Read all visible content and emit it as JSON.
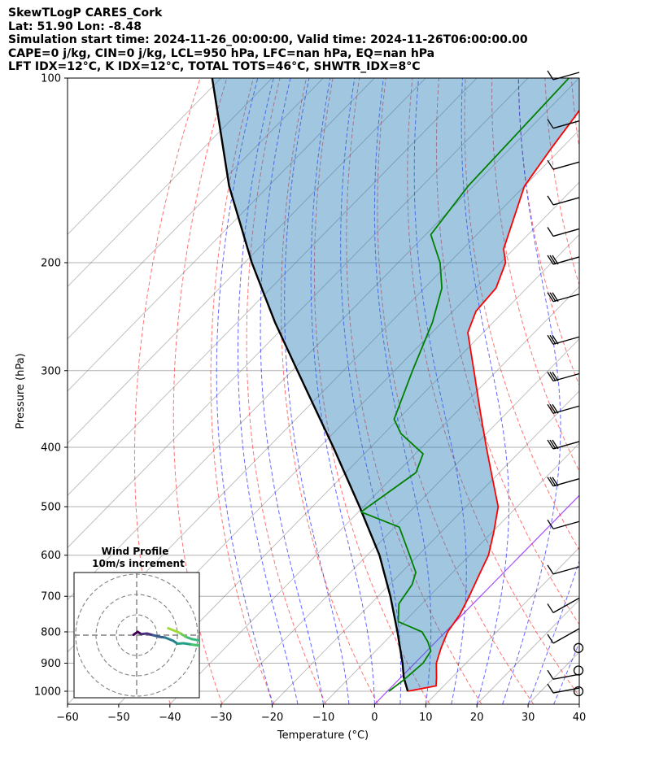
{
  "header": {
    "line1": "SkewTLogP CARES_Cork",
    "line2": "Lat: 51.90   Lon: -8.48",
    "line3": "Simulation start time: 2024-11-26_00:00:00, Valid time: 2024-11-26T06:00:00.00",
    "line4": "CAPE=0 j/kg, CIN=0 j/kg, LCL=950 hPa, LFC=nan hPa, EQ=nan hPa",
    "line5": "LFT IDX=12°C, K IDX=12°C, TOTAL TOTS=46°C, SHWTR_IDX=8°C"
  },
  "chart_data": {
    "type": "skewt-logp",
    "xlabel": "Temperature (°C)",
    "ylabel": "Pressure (hPa)",
    "xlim": [
      -60,
      40
    ],
    "ylim": [
      1050,
      100
    ],
    "x_ticks": [
      "−60",
      "−50",
      "−40",
      "−30",
      "−20",
      "−10",
      "0",
      "10",
      "20",
      "30",
      "40"
    ],
    "x_tick_values": [
      -60,
      -50,
      -40,
      -30,
      -20,
      -10,
      0,
      10,
      20,
      30,
      40
    ],
    "p_ticks": [
      "100",
      "200",
      "300",
      "400",
      "500",
      "600",
      "700",
      "800",
      "900",
      "1000"
    ],
    "p_tick_values": [
      100,
      200,
      300,
      400,
      500,
      600,
      700,
      800,
      900,
      1000
    ],
    "temperature": [
      {
        "p": 1000,
        "t": 4
      },
      {
        "p": 980,
        "t": 8.5
      },
      {
        "p": 950,
        "t": 7
      },
      {
        "p": 900,
        "t": 4.2
      },
      {
        "p": 850,
        "t": 2.2
      },
      {
        "p": 800,
        "t": 0.4
      },
      {
        "p": 750,
        "t": -0.5
      },
      {
        "p": 700,
        "t": -2.2
      },
      {
        "p": 650,
        "t": -4.2
      },
      {
        "p": 600,
        "t": -6.3
      },
      {
        "p": 550,
        "t": -9.7
      },
      {
        "p": 500,
        "t": -13.7
      },
      {
        "p": 450,
        "t": -20.2
      },
      {
        "p": 400,
        "t": -27.4
      },
      {
        "p": 350,
        "t": -35.4
      },
      {
        "p": 300,
        "t": -44.5
      },
      {
        "p": 260,
        "t": -53
      },
      {
        "p": 240,
        "t": -55.5
      },
      {
        "p": 220,
        "t": -56
      },
      {
        "p": 200,
        "t": -59
      },
      {
        "p": 190,
        "t": -62
      },
      {
        "p": 150,
        "t": -70
      },
      {
        "p": 130,
        "t": -72
      },
      {
        "p": 115,
        "t": -73.5
      },
      {
        "p": 100,
        "t": -75.5
      }
    ],
    "dewpoint": [
      {
        "p": 1000,
        "t": 0.3
      },
      {
        "p": 960,
        "t": 1.0
      },
      {
        "p": 900,
        "t": 1.6
      },
      {
        "p": 860,
        "t": 0.8
      },
      {
        "p": 830,
        "t": -1.6
      },
      {
        "p": 800,
        "t": -4.6
      },
      {
        "p": 770,
        "t": -11.2
      },
      {
        "p": 720,
        "t": -14.5
      },
      {
        "p": 670,
        "t": -15.6
      },
      {
        "p": 640,
        "t": -17.2
      },
      {
        "p": 600,
        "t": -21.7
      },
      {
        "p": 540,
        "t": -29.1
      },
      {
        "p": 510,
        "t": -39.5
      },
      {
        "p": 440,
        "t": -36.3
      },
      {
        "p": 410,
        "t": -38.5
      },
      {
        "p": 380,
        "t": -46.7
      },
      {
        "p": 360,
        "t": -50.8
      },
      {
        "p": 300,
        "t": -56.5
      },
      {
        "p": 250,
        "t": -61.9
      },
      {
        "p": 220,
        "t": -66.6
      },
      {
        "p": 200,
        "t": -71.8
      },
      {
        "p": 180,
        "t": -79
      },
      {
        "p": 150,
        "t": -81
      },
      {
        "p": 100,
        "t": -82
      }
    ],
    "parcel_profile": [
      {
        "p": 1000,
        "t": 4
      },
      {
        "p": 950,
        "t": 0.6
      },
      {
        "p": 900,
        "t": -2.4
      },
      {
        "p": 850,
        "t": -5.8
      },
      {
        "p": 800,
        "t": -9.4
      },
      {
        "p": 700,
        "t": -17.6
      },
      {
        "p": 600,
        "t": -27.6
      },
      {
        "p": 500,
        "t": -40.8
      },
      {
        "p": 400,
        "t": -57.3
      },
      {
        "p": 300,
        "t": -79
      },
      {
        "p": 250,
        "t": -92.7
      },
      {
        "p": 200,
        "t": -108.6
      },
      {
        "p": 150,
        "t": -127.7
      },
      {
        "p": 100,
        "t": -151.7
      }
    ],
    "wind_barbs": [
      {
        "p": 100
      },
      {
        "p": 120
      },
      {
        "p": 140
      },
      {
        "p": 160
      },
      {
        "p": 180
      },
      {
        "p": 200
      },
      {
        "p": 230
      },
      {
        "p": 270
      },
      {
        "p": 310
      },
      {
        "p": 350
      },
      {
        "p": 400
      },
      {
        "p": 460
      },
      {
        "p": 540
      },
      {
        "p": 640
      },
      {
        "p": 740
      },
      {
        "p": 830
      },
      {
        "p": 950
      },
      {
        "p": 1000
      }
    ],
    "calm_levels": [
      850,
      925,
      1000
    ],
    "hodograph": {
      "title": "Wind Profile",
      "subtitle": "10m/s increment",
      "rings_ms": [
        10,
        20,
        30
      ],
      "trace": [
        {
          "u": -1.5,
          "v": 0.2
        },
        {
          "u": 0.5,
          "v": 1.6
        },
        {
          "u": 2.2,
          "v": 0.5
        },
        {
          "u": 5,
          "v": 0.8
        },
        {
          "u": 8,
          "v": 0
        },
        {
          "u": 11,
          "v": -0.8
        },
        {
          "u": 14,
          "v": -1.2
        },
        {
          "u": 18,
          "v": -2.8
        },
        {
          "u": 20,
          "v": -4.2
        },
        {
          "u": 23,
          "v": -4.0
        },
        {
          "u": 27,
          "v": -4.6
        },
        {
          "u": 31,
          "v": -5.2
        }
      ],
      "trace2": [
        {
          "u": 31,
          "v": -2.7
        },
        {
          "u": 27,
          "v": -1.9
        },
        {
          "u": 24,
          "v": -0.8
        },
        {
          "u": 21,
          "v": 1.2
        },
        {
          "u": 15.5,
          "v": 3.4
        }
      ]
    },
    "colors": {
      "temperature": "#ff0000",
      "dewpoint": "#008000",
      "parcel": "#000000",
      "negative_area": "#1f77b4",
      "dry_adiabat": "#ff0000",
      "moist_adiabat": "#0000ff",
      "isotherm": "#808080",
      "zero_isotherm": "#8000ff"
    }
  }
}
